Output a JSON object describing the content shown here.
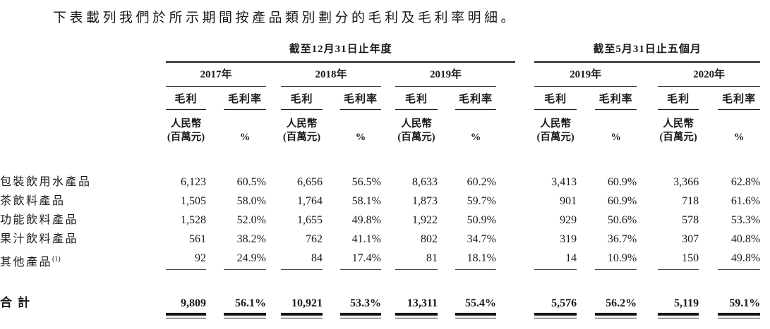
{
  "page": {
    "background": "#ffffff",
    "text_color": "#1a1a1a",
    "rule_color": "#1a1a1a"
  },
  "intro_text": "下表載列我們於所示期間按產品類別劃分的毛利及毛利率明細。",
  "table": {
    "period_groups": [
      {
        "label": "截至12月31日止年度",
        "years": [
          "2017年",
          "2018年",
          "2019年"
        ]
      },
      {
        "label": "截至5月31日止五個月",
        "years": [
          "2019年",
          "2020年"
        ]
      }
    ],
    "measure_headers": {
      "gross_profit": "毛利",
      "gross_margin": "毛利率"
    },
    "unit_headers": {
      "gross_profit_line1": "人民幣",
      "gross_profit_line2": "(百萬元)",
      "gross_margin": "%"
    },
    "rows": [
      {
        "label": "包裝飲用水產品",
        "footnote": "",
        "values": [
          "6,123",
          "60.5%",
          "6,656",
          "56.5%",
          "8,633",
          "60.2%",
          "3,413",
          "60.9%",
          "3,366",
          "62.8%"
        ]
      },
      {
        "label": "茶飲料產品",
        "footnote": "",
        "values": [
          "1,505",
          "58.0%",
          "1,764",
          "58.1%",
          "1,873",
          "59.7%",
          "901",
          "60.9%",
          "718",
          "61.6%"
        ]
      },
      {
        "label": "功能飲料產品",
        "footnote": "",
        "values": [
          "1,528",
          "52.0%",
          "1,655",
          "49.8%",
          "1,922",
          "50.9%",
          "929",
          "50.6%",
          "578",
          "53.3%"
        ]
      },
      {
        "label": "果汁飲料產品",
        "footnote": "",
        "values": [
          "561",
          "38.2%",
          "762",
          "41.1%",
          "802",
          "34.7%",
          "319",
          "36.7%",
          "307",
          "40.8%"
        ]
      },
      {
        "label": "其他產品",
        "footnote": "(1)",
        "values": [
          "92",
          "24.9%",
          "84",
          "17.4%",
          "81",
          "18.1%",
          "14",
          "10.9%",
          "150",
          "49.8%"
        ]
      }
    ],
    "total_row": {
      "label": "合計",
      "values": [
        "9,809",
        "56.1%",
        "10,921",
        "53.3%",
        "13,311",
        "55.4%",
        "5,576",
        "56.2%",
        "5,119",
        "59.1%"
      ]
    }
  }
}
